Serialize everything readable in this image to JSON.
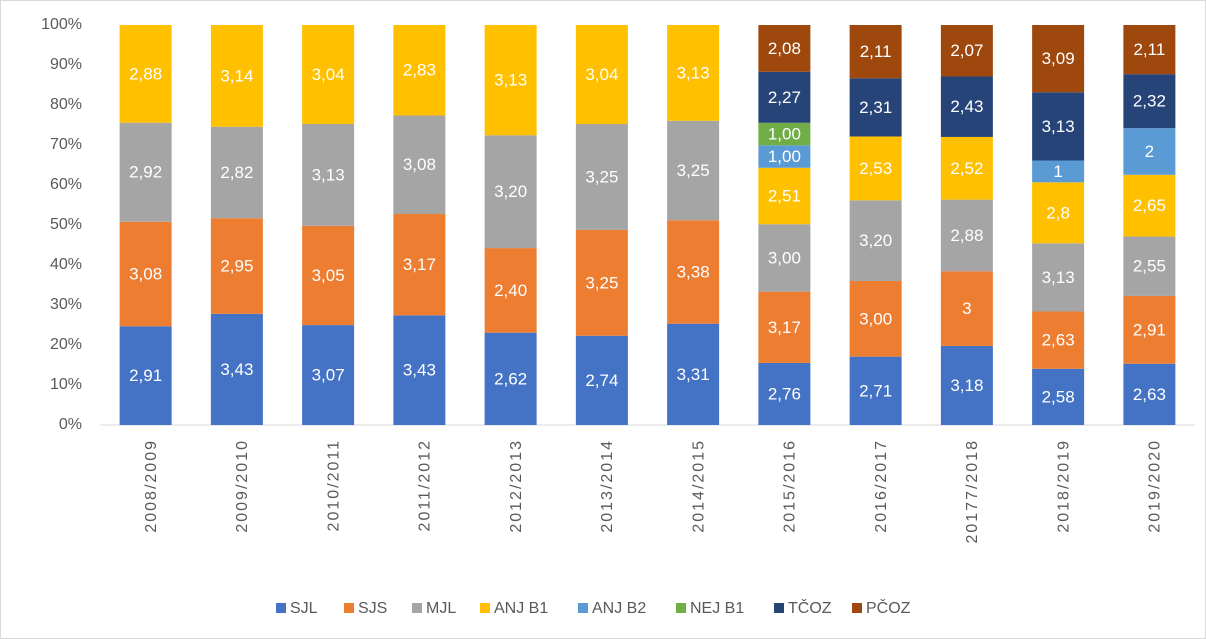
{
  "chart_data": {
    "type": "bar",
    "stack": "percent",
    "categories": [
      "2008/2009",
      "2009/2010",
      "2010/2011",
      "2011/2012",
      "2012/2013",
      "2013/2014",
      "2014/2015",
      "2015/2016",
      "2016/2017",
      "20177/2018",
      "2018/2019",
      "2019/2020"
    ],
    "series": [
      {
        "name": "SJL",
        "color": "#4472c4",
        "values": [
          2.91,
          3.43,
          3.07,
          3.43,
          2.62,
          2.74,
          3.31,
          2.76,
          2.71,
          3.18,
          2.58,
          2.63
        ],
        "value_labels": [
          "2,91",
          "3,43",
          "3,07",
          "3,43",
          "2,62",
          "2,74",
          "3,31",
          "2,76",
          "2,71",
          "3,18",
          "2,58",
          "2,63"
        ]
      },
      {
        "name": "SJS",
        "color": "#ed7d31",
        "values": [
          3.08,
          2.95,
          3.05,
          3.17,
          2.4,
          3.25,
          3.38,
          3.17,
          3.0,
          3,
          2.63,
          2.91
        ],
        "value_labels": [
          "3,08",
          "2,95",
          "3,05",
          "3,17",
          "2,40",
          "3,25",
          "3,38",
          "3,17",
          "3,00",
          "3",
          "2,63",
          "2,91"
        ]
      },
      {
        "name": "MJL",
        "color": "#a5a5a5",
        "values": [
          2.92,
          2.82,
          3.13,
          3.08,
          3.2,
          3.25,
          3.25,
          3.0,
          3.2,
          2.88,
          3.13,
          2.55
        ],
        "value_labels": [
          "2,92",
          "2,82",
          "3,13",
          "3,08",
          "3,20",
          "3,25",
          "3,25",
          "3,00",
          "3,20",
          "2,88",
          "3,13",
          "2,55"
        ]
      },
      {
        "name": "ANJ B1",
        "color": "#ffc000",
        "values": [
          2.88,
          3.14,
          3.04,
          2.83,
          3.13,
          3.04,
          3.13,
          2.51,
          2.53,
          2.52,
          2.8,
          2.65
        ],
        "value_labels": [
          "2,88",
          "3,14",
          "3,04",
          "2,83",
          "3,13",
          "3,04",
          "3,13",
          "2,51",
          "2,53",
          "2,52",
          "2,8",
          "2,65"
        ]
      },
      {
        "name": "ANJ B2",
        "color": "#5b9bd5",
        "values": [
          null,
          null,
          null,
          null,
          null,
          null,
          null,
          1.0,
          null,
          null,
          1,
          2
        ],
        "value_labels": [
          null,
          null,
          null,
          null,
          null,
          null,
          null,
          "1,00",
          null,
          null,
          "1",
          "2"
        ]
      },
      {
        "name": "NEJ B1",
        "color": "#70ad47",
        "values": [
          null,
          null,
          null,
          null,
          null,
          null,
          null,
          1.0,
          null,
          null,
          null,
          null
        ],
        "value_labels": [
          null,
          null,
          null,
          null,
          null,
          null,
          null,
          "1,00",
          null,
          null,
          null,
          null
        ]
      },
      {
        "name": "TČOZ",
        "color": "#264478",
        "values": [
          null,
          null,
          null,
          null,
          null,
          null,
          null,
          2.27,
          2.31,
          2.43,
          3.13,
          2.32
        ],
        "value_labels": [
          null,
          null,
          null,
          null,
          null,
          null,
          null,
          "2,27",
          "2,31",
          "2,43",
          "3,13",
          "2,32"
        ]
      },
      {
        "name": "PČOZ",
        "color": "#9e480e",
        "values": [
          null,
          null,
          null,
          null,
          null,
          null,
          null,
          2.08,
          2.11,
          2.07,
          3.09,
          2.11
        ],
        "value_labels": [
          null,
          null,
          null,
          null,
          null,
          null,
          null,
          "2,08",
          "2,11",
          "2,07",
          "3,09",
          "2,11"
        ]
      }
    ],
    "ylim": [
      0,
      100
    ],
    "yticks": [
      {
        "value": 0,
        "label": "0%"
      },
      {
        "value": 10,
        "label": "10%"
      },
      {
        "value": 20,
        "label": "20%"
      },
      {
        "value": 30,
        "label": "30%"
      },
      {
        "value": 40,
        "label": "40%"
      },
      {
        "value": 50,
        "label": "50%"
      },
      {
        "value": 60,
        "label": "60%"
      },
      {
        "value": 70,
        "label": "70%"
      },
      {
        "value": 80,
        "label": "80%"
      },
      {
        "value": 90,
        "label": "90%"
      },
      {
        "value": 100,
        "label": "100%"
      }
    ],
    "grid": false,
    "legend": "bottom"
  }
}
